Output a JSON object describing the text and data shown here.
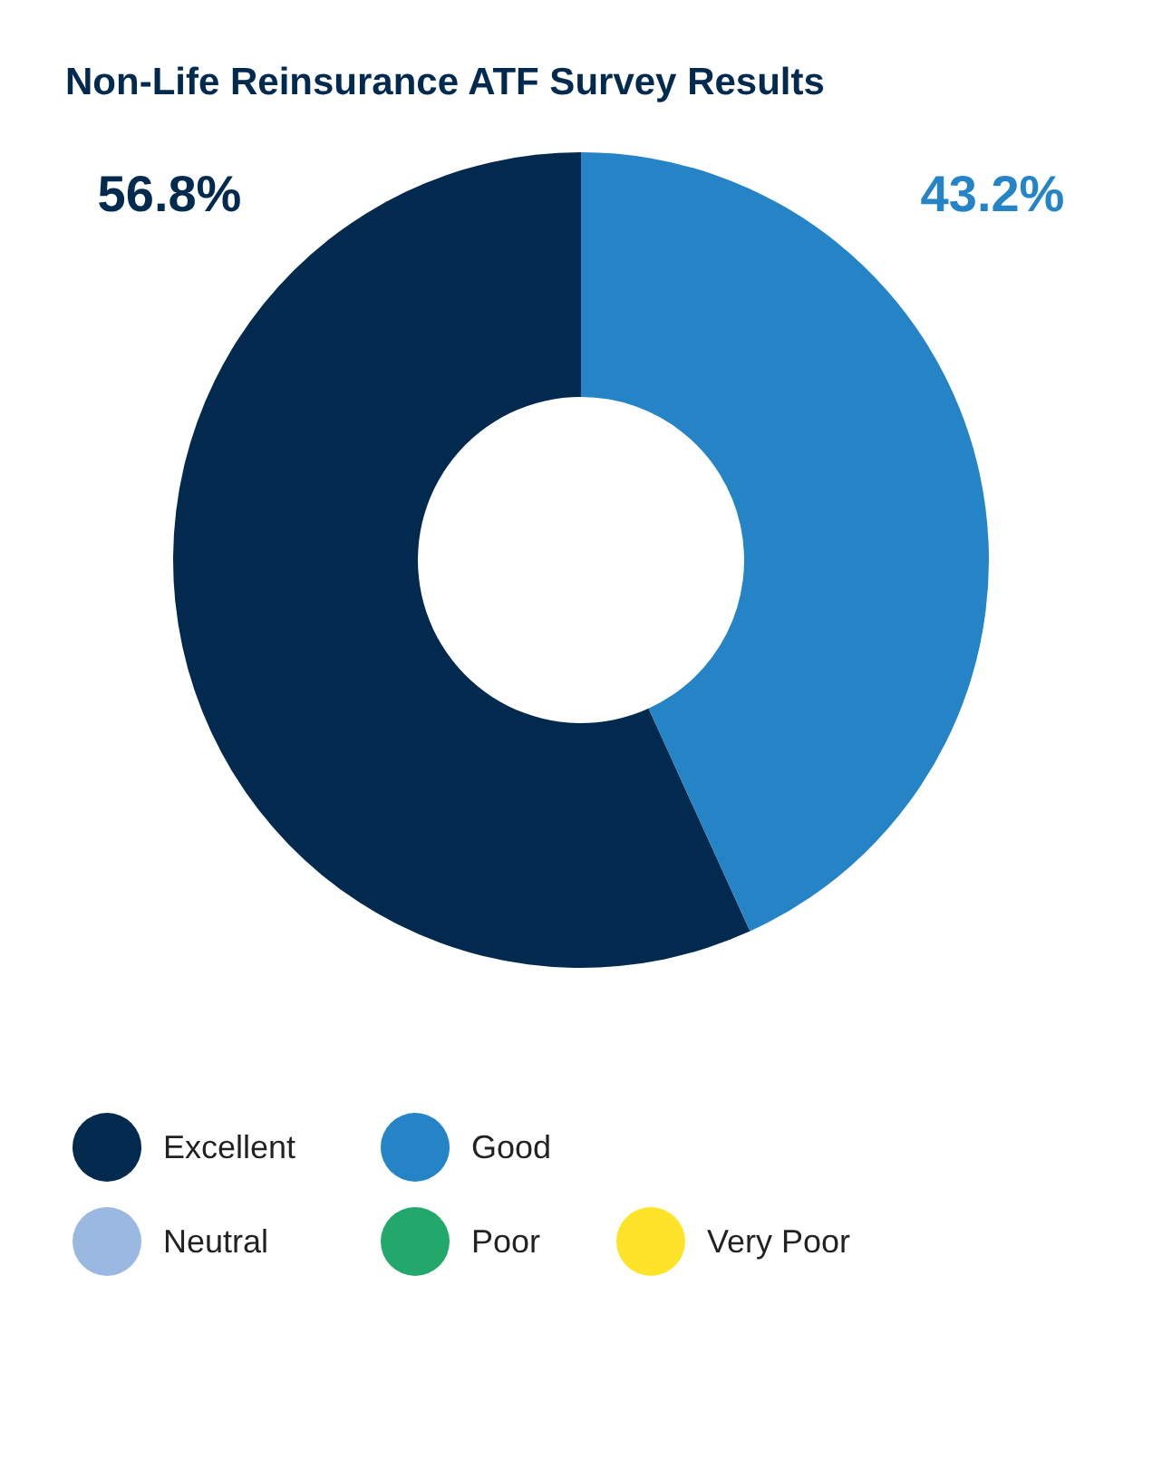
{
  "chart_data": {
    "type": "donut",
    "title": "Non-Life Reinsurance ATF Survey Results",
    "categories": [
      "Excellent",
      "Good",
      "Neutral",
      "Poor",
      "Very Poor"
    ],
    "values": [
      56.8,
      43.2,
      0,
      0,
      0
    ],
    "colors": [
      "#022a4e",
      "#2584c6",
      "#9bb8e0",
      "#22a86a",
      "#fde428"
    ],
    "value_labels": [
      "56.8%",
      "43.2%",
      null,
      null,
      null
    ],
    "legend": "bottom"
  }
}
